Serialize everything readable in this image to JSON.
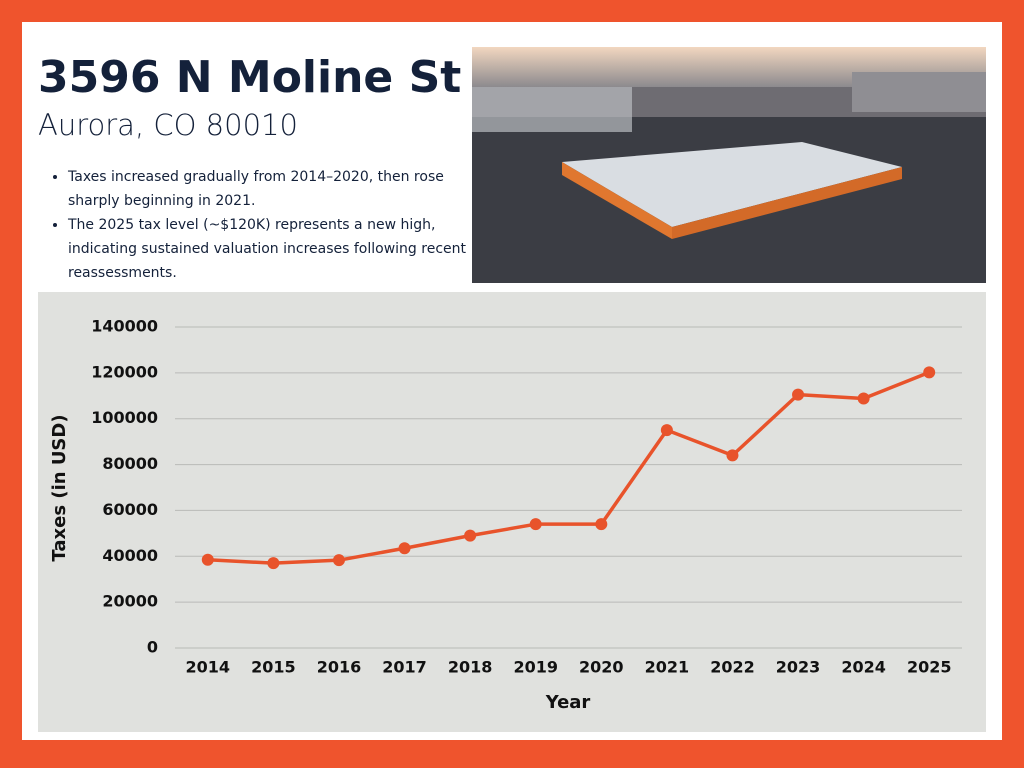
{
  "header": {
    "title": "3596 N Moline St",
    "subtitle": "Aurora, CO 80010"
  },
  "bullets": [
    "Taxes increased gradually from 2014–2020, then rose sharply beginning in 2021.",
    "The 2025 tax level (~$120K) represents a new high, indicating sustained valuation increases following recent reassessments."
  ],
  "chart_data": {
    "type": "line",
    "x_label": "Year",
    "y_label": "Taxes (in USD)",
    "categories": [
      "2014",
      "2015",
      "2016",
      "2017",
      "2018",
      "2019",
      "2020",
      "2021",
      "2022",
      "2023",
      "2024",
      "2025"
    ],
    "series": [
      {
        "name": "Taxes",
        "color": "#e8532b",
        "values": [
          38500,
          37000,
          38300,
          43500,
          49000,
          54000,
          54000,
          95000,
          84000,
          110500,
          108800,
          120200
        ]
      }
    ],
    "ylim": [
      0,
      140000
    ],
    "yticks": [
      0,
      20000,
      40000,
      60000,
      80000,
      100000,
      120000,
      140000
    ],
    "grid": true
  }
}
